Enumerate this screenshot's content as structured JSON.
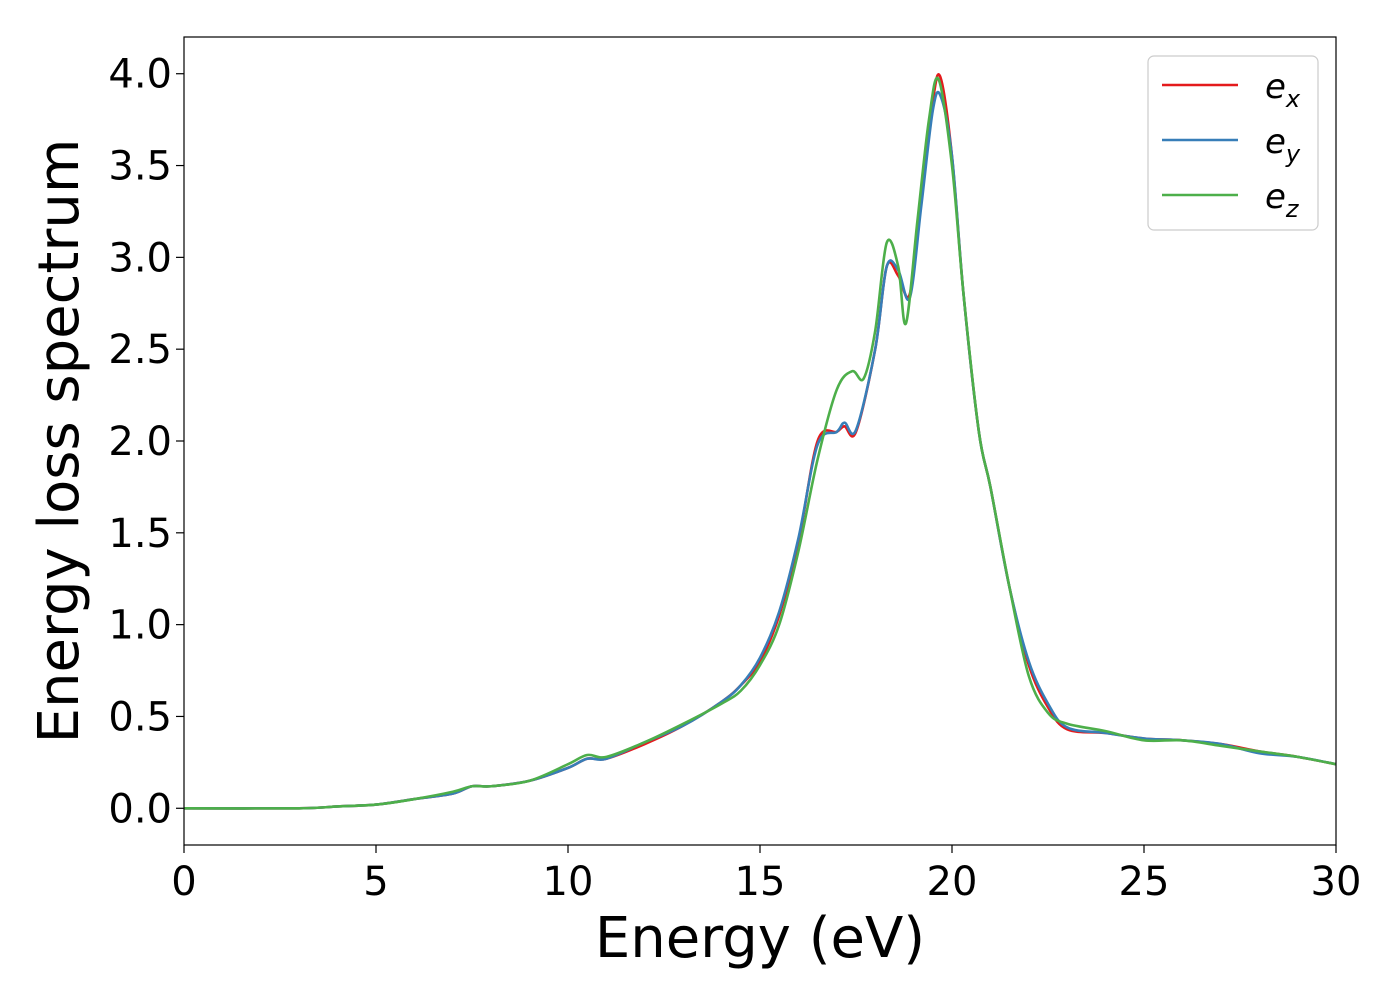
{
  "chart_data": {
    "type": "line",
    "title": "",
    "xlabel": "Energy (eV)",
    "ylabel": "Energy loss spectrum",
    "xlim": [
      0,
      30
    ],
    "ylim": [
      -0.2,
      4.2
    ],
    "x_ticks": [
      0,
      5,
      10,
      15,
      20,
      25,
      30
    ],
    "y_ticks": [
      0.0,
      0.5,
      1.0,
      1.5,
      2.0,
      2.5,
      3.0,
      3.5,
      4.0
    ],
    "x_tick_labels": [
      "0",
      "5",
      "10",
      "15",
      "20",
      "25",
      "30"
    ],
    "y_tick_labels": [
      "0.0",
      "0.5",
      "1.0",
      "1.5",
      "2.0",
      "2.5",
      "3.0",
      "3.5",
      "4.0"
    ],
    "grid": false,
    "legend_position": "top-right",
    "series": [
      {
        "name": "e_x",
        "legend_base": "e",
        "legend_sub": "x",
        "color": "#e41a1c",
        "x": [
          0,
          3,
          4,
          5,
          6,
          7,
          7.5,
          8,
          9,
          10,
          10.5,
          11,
          12,
          13,
          14,
          14.5,
          15,
          15.5,
          16,
          16.5,
          17,
          17.2,
          17.5,
          18,
          18.3,
          18.6,
          18.9,
          19.2,
          19.5,
          19.7,
          20,
          20.3,
          20.7,
          21,
          21.5,
          22,
          22.5,
          23,
          24,
          25,
          26,
          27,
          28,
          29,
          30
        ],
        "y": [
          0.0,
          0.0,
          0.01,
          0.02,
          0.05,
          0.08,
          0.12,
          0.12,
          0.15,
          0.22,
          0.27,
          0.27,
          0.35,
          0.45,
          0.58,
          0.67,
          0.8,
          1.05,
          1.45,
          2.0,
          2.05,
          2.08,
          2.05,
          2.5,
          2.95,
          2.9,
          2.8,
          3.3,
          3.85,
          3.98,
          3.55,
          2.8,
          2.05,
          1.75,
          1.2,
          0.78,
          0.55,
          0.43,
          0.41,
          0.38,
          0.37,
          0.35,
          0.31,
          0.28,
          0.24
        ]
      },
      {
        "name": "e_y",
        "legend_base": "e",
        "legend_sub": "y",
        "color": "#377eb8",
        "x": [
          0,
          3,
          4,
          5,
          6,
          7,
          7.5,
          8,
          9,
          10,
          10.5,
          11,
          12,
          13,
          14,
          14.5,
          15,
          15.5,
          16,
          16.5,
          17,
          17.2,
          17.5,
          18,
          18.3,
          18.6,
          18.9,
          19.2,
          19.5,
          19.7,
          20,
          20.3,
          20.7,
          21,
          21.5,
          22,
          22.5,
          23,
          24,
          25,
          26,
          27,
          28,
          29,
          30
        ],
        "y": [
          0.0,
          0.0,
          0.01,
          0.02,
          0.05,
          0.08,
          0.12,
          0.12,
          0.15,
          0.22,
          0.27,
          0.27,
          0.36,
          0.45,
          0.58,
          0.67,
          0.82,
          1.07,
          1.47,
          1.98,
          2.05,
          2.1,
          2.06,
          2.5,
          2.95,
          2.93,
          2.78,
          3.28,
          3.8,
          3.88,
          3.55,
          2.8,
          2.05,
          1.75,
          1.2,
          0.8,
          0.57,
          0.44,
          0.41,
          0.38,
          0.37,
          0.35,
          0.3,
          0.28,
          0.24
        ]
      },
      {
        "name": "e_z",
        "legend_base": "e",
        "legend_sub": "z",
        "color": "#4daf4a",
        "x": [
          0,
          3,
          4,
          5,
          6,
          7,
          7.5,
          8,
          9,
          10,
          10.5,
          11,
          12,
          13,
          14,
          14.5,
          15,
          15.5,
          16,
          16.5,
          17,
          17.4,
          17.7,
          18,
          18.3,
          18.6,
          18.8,
          19.1,
          19.4,
          19.65,
          20,
          20.3,
          20.7,
          21,
          21.5,
          22,
          22.5,
          23,
          24,
          25,
          26,
          27,
          28,
          29,
          30
        ],
        "y": [
          0.0,
          0.0,
          0.01,
          0.02,
          0.05,
          0.09,
          0.12,
          0.12,
          0.15,
          0.24,
          0.29,
          0.28,
          0.36,
          0.46,
          0.57,
          0.64,
          0.78,
          1.0,
          1.4,
          1.9,
          2.28,
          2.38,
          2.34,
          2.6,
          3.08,
          2.95,
          2.64,
          3.2,
          3.75,
          3.97,
          3.5,
          2.8,
          2.05,
          1.75,
          1.2,
          0.72,
          0.52,
          0.46,
          0.42,
          0.37,
          0.37,
          0.34,
          0.31,
          0.28,
          0.24
        ]
      }
    ]
  }
}
